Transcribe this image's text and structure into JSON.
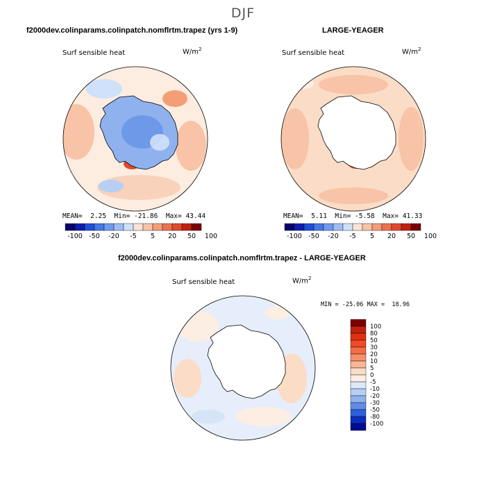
{
  "season": "DJF",
  "variable": "Surf sensible heat",
  "units": "W/m",
  "units_exp": "2",
  "panels": [
    {
      "title": "f2000dev.colinparams.colinpatch.nomflrtm.trapez (yrs 1-9)",
      "mean_label": "MEAN=",
      "mean": "2.25",
      "min_label": "Min=",
      "min": "-21.86",
      "max_label": "Max=",
      "max": "43.44"
    },
    {
      "title": "LARGE-YEAGER",
      "mean_label": "MEAN=",
      "mean": "5.11",
      "min_label": "Min=",
      "min": "-5.58",
      "max_label": "Max=",
      "max": "41.33"
    }
  ],
  "diff": {
    "title": "f2000dev.colinparams.colinpatch.nomflrtm.trapez - LARGE-YEAGER",
    "stats": "MIN = -25.06 MAX =  18.96"
  },
  "colorbar_labels": [
    "-100",
    "-50",
    "-20",
    "-5",
    "5",
    "20",
    "50",
    "100"
  ],
  "diff_colorbar_labels": [
    "100",
    "80",
    "50",
    "30",
    "20",
    "10",
    "5",
    "0",
    "-5",
    "-10",
    "-20",
    "-30",
    "-50",
    "-80",
    "-100"
  ],
  "colors": {
    "scale": [
      "#08006e",
      "#0c1fb0",
      "#1f4fd8",
      "#4577e6",
      "#6f9aef",
      "#9dbdf4",
      "#cfe1fa",
      "#fbe2d4",
      "#f8c3a6",
      "#f49e78",
      "#ee7150",
      "#e04a2e",
      "#c0220f",
      "#7a0000"
    ],
    "diff_scale": [
      "#7a0000",
      "#c0220f",
      "#e03010",
      "#f04a28",
      "#f36c44",
      "#f69269",
      "#f8b796",
      "#fbdcc6",
      "#fdeee3",
      "#dde9fa",
      "#b7cff5",
      "#8fb2ef",
      "#5f8ee6",
      "#2e5fdc",
      "#0c2cbf",
      "#000c90"
    ]
  },
  "chart_data": [
    {
      "type": "heatmap",
      "title": "f2000dev.colinparams.colinpatch.nomflrtm.trapez (yrs 1-9)",
      "variable": "Surf sensible heat",
      "units": "W/m2",
      "mean": 2.25,
      "min": -21.86,
      "max": 43.44,
      "colorbar_ticks": [
        -100,
        -50,
        -20,
        -5,
        5,
        20,
        50,
        100
      ]
    },
    {
      "type": "heatmap",
      "title": "LARGE-YEAGER",
      "variable": "Surf sensible heat",
      "units": "W/m2",
      "mean": 5.11,
      "min": -5.58,
      "max": 41.33,
      "colorbar_ticks": [
        -100,
        -50,
        -20,
        -5,
        5,
        20,
        50,
        100
      ]
    },
    {
      "type": "heatmap",
      "title": "f2000dev.colinparams.colinpatch.nomflrtm.trapez - LARGE-YEAGER",
      "variable": "Surf sensible heat",
      "units": "W/m2",
      "min": -25.06,
      "max": 18.96,
      "colorbar_ticks": [
        100,
        80,
        50,
        30,
        20,
        10,
        5,
        0,
        -5,
        -10,
        -20,
        -30,
        -50,
        -80,
        -100
      ]
    }
  ]
}
